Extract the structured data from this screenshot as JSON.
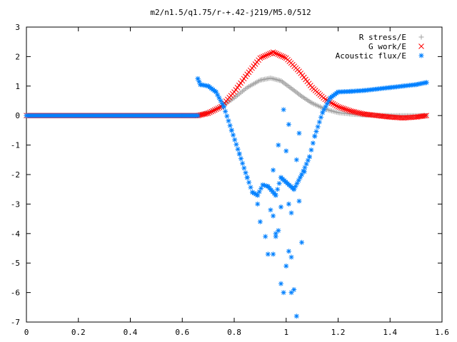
{
  "chart_data": {
    "type": "scatter",
    "title": "m2/n1.5/q1.75/r-+.42-j219/M5.0/512",
    "xlabel": "",
    "ylabel": "",
    "xlim": [
      0,
      1.6
    ],
    "ylim": [
      -7,
      3
    ],
    "x_ticks": [
      "0",
      "0.2",
      "0.4",
      "0.6",
      "0.8",
      "1",
      "1.2",
      "1.4",
      "1.6"
    ],
    "y_ticks": [
      "3",
      "2",
      "1",
      "0",
      "-1",
      "-2",
      "-3",
      "-4",
      "-5",
      "-6",
      "-7"
    ],
    "grid": false,
    "legend_position": "top-right",
    "series": [
      {
        "name": "R stress/E",
        "marker": "plus",
        "color": "#a0a0a0",
        "points": [
          [
            0.66,
            0.0
          ],
          [
            0.7,
            0.1
          ],
          [
            0.75,
            0.3
          ],
          [
            0.8,
            0.6
          ],
          [
            0.85,
            0.95
          ],
          [
            0.9,
            1.2
          ],
          [
            0.94,
            1.27
          ],
          [
            0.98,
            1.18
          ],
          [
            1.02,
            0.92
          ],
          [
            1.06,
            0.65
          ],
          [
            1.1,
            0.42
          ],
          [
            1.15,
            0.22
          ],
          [
            1.2,
            0.1
          ],
          [
            1.25,
            0.05
          ],
          [
            1.3,
            0.02
          ],
          [
            1.4,
            0.0
          ],
          [
            1.54,
            0.0
          ]
        ]
      },
      {
        "name": "G work/E",
        "marker": "cross",
        "color": "#ff0000",
        "points": [
          [
            0.66,
            0.0
          ],
          [
            0.7,
            0.08
          ],
          [
            0.75,
            0.3
          ],
          [
            0.8,
            0.8
          ],
          [
            0.85,
            1.4
          ],
          [
            0.9,
            1.95
          ],
          [
            0.95,
            2.15
          ],
          [
            1.0,
            1.95
          ],
          [
            1.05,
            1.5
          ],
          [
            1.1,
            0.95
          ],
          [
            1.15,
            0.55
          ],
          [
            1.2,
            0.3
          ],
          [
            1.25,
            0.15
          ],
          [
            1.3,
            0.05
          ],
          [
            1.35,
            0.0
          ],
          [
            1.4,
            -0.05
          ],
          [
            1.45,
            -0.08
          ],
          [
            1.5,
            -0.05
          ],
          [
            1.54,
            0.0
          ]
        ]
      },
      {
        "name": "Acoustic flux/E",
        "marker": "star",
        "color": "#0080ff",
        "points": [
          [
            0.66,
            1.25
          ],
          [
            0.67,
            1.05
          ],
          [
            0.7,
            1.0
          ],
          [
            0.73,
            0.8
          ],
          [
            0.76,
            0.3
          ],
          [
            0.79,
            -0.5
          ],
          [
            0.82,
            -1.3
          ],
          [
            0.85,
            -2.1
          ],
          [
            0.87,
            -2.6
          ],
          [
            0.89,
            -2.7
          ],
          [
            0.91,
            -2.35
          ],
          [
            0.89,
            -3.0
          ],
          [
            0.9,
            -3.6
          ],
          [
            0.92,
            -4.1
          ],
          [
            0.93,
            -4.7
          ],
          [
            0.95,
            -3.4
          ],
          [
            0.96,
            -4.0
          ],
          [
            0.97,
            -3.9
          ],
          [
            0.98,
            -5.7
          ],
          [
            0.99,
            -6.0
          ],
          [
            1.0,
            -5.1
          ],
          [
            1.01,
            -4.6
          ],
          [
            1.02,
            -6.0
          ],
          [
            1.03,
            -5.9
          ],
          [
            1.04,
            -6.8
          ],
          [
            1.02,
            -4.8
          ],
          [
            1.05,
            -2.9
          ],
          [
            1.06,
            -4.3
          ],
          [
            1.07,
            -1.9
          ],
          [
            1.09,
            -1.4
          ],
          [
            1.11,
            -0.7
          ],
          [
            1.14,
            0.1
          ],
          [
            1.17,
            0.6
          ],
          [
            1.2,
            0.8
          ],
          [
            1.25,
            0.82
          ],
          [
            1.3,
            0.85
          ],
          [
            1.35,
            0.9
          ],
          [
            1.4,
            0.95
          ],
          [
            1.45,
            1.0
          ],
          [
            1.5,
            1.05
          ],
          [
            1.54,
            1.12
          ],
          [
            0.97,
            -1.0
          ],
          [
            0.99,
            0.2
          ],
          [
            1.0,
            -1.2
          ],
          [
            1.01,
            -0.3
          ],
          [
            0.95,
            -1.85
          ],
          [
            0.96,
            -2.7
          ],
          [
            1.03,
            -2.5
          ],
          [
            1.01,
            -3.0
          ],
          [
            0.98,
            -2.1
          ],
          [
            1.04,
            -1.5
          ],
          [
            1.05,
            -0.6
          ],
          [
            0.93,
            -2.4
          ],
          [
            0.94,
            -3.2
          ],
          [
            0.96,
            -4.1
          ],
          [
            0.95,
            -4.7
          ],
          [
            1.06,
            -2.0
          ],
          [
            1.02,
            -3.3
          ],
          [
            0.98,
            -3.1
          ]
        ]
      }
    ]
  }
}
